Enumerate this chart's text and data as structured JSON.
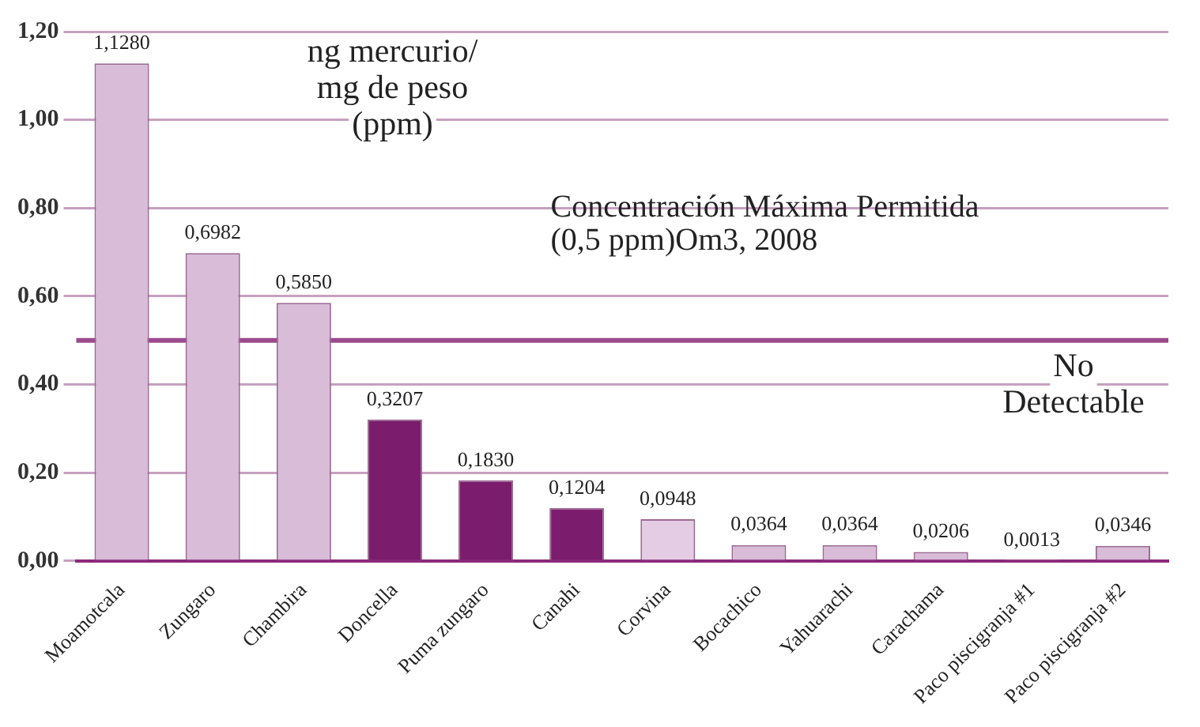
{
  "chart_data": {
    "type": "bar",
    "categories": [
      "Moamotcala",
      "Zungaro",
      "Chambira",
      "Doncella",
      "Puma zungaro",
      "Canahi",
      "Corvina",
      "Bocachico",
      "Yahuarachi",
      "Carachama",
      "Paco piscigranja #1",
      "Paco piscigranja #2"
    ],
    "values": [
      1.128,
      0.6982,
      0.585,
      0.3207,
      0.183,
      0.1204,
      0.0948,
      0.0364,
      0.0364,
      0.0206,
      0.0013,
      0.0346
    ],
    "value_labels": [
      "1,1280",
      "0,6982",
      "0,5850",
      "0,3207",
      "0,1830",
      "0,1204",
      "0,0948",
      "0,0364",
      "0,0364",
      "0,0206",
      "0,0013",
      "0,0346"
    ],
    "colors": [
      "#d8bcd8",
      "#d8bcd8",
      "#d8bcd8",
      "#7b1c6c",
      "#7b1c6c",
      "#7b1c6c",
      "#e4cce4",
      "#d8bcd8",
      "#d8bcd8",
      "#d8bcd8",
      "#d8bcd8",
      "#d8bcd8"
    ],
    "ylim": [
      0,
      1.2
    ],
    "yticks": [
      {
        "value": 0,
        "label": "0,00"
      },
      {
        "value": 0.2,
        "label": "0,20"
      },
      {
        "value": 0.4,
        "label": "0,40"
      },
      {
        "value": 0.6,
        "label": "0,60"
      },
      {
        "value": 0.8,
        "label": "0,80"
      },
      {
        "value": 1.0,
        "label": "1,00"
      },
      {
        "value": 1.2,
        "label": "1,20"
      }
    ],
    "grid": "y",
    "ref_lines": [
      {
        "axis": "y",
        "value": 0.5,
        "label": "Concentración Máxima Permitida (0,5 ppm)Om3, 2008",
        "color": "#9c4a8c"
      }
    ],
    "annotations": [
      "ng mercurio/ mg de peso (ppm)",
      "No Detectable"
    ],
    "legend": false
  }
}
